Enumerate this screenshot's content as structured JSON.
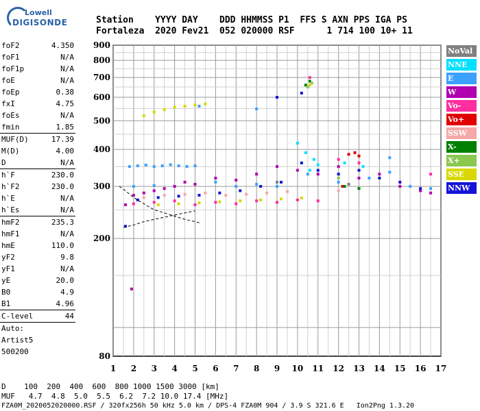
{
  "logo": {
    "brand": "Lowell",
    "product": "DIGISONDE"
  },
  "header": {
    "line1": "Station    YYYY DAY    DDD HHMMSS P1  FFS S AXN PPS IGA PS",
    "line2": "Fortaleza  2020 Fev21  052 020000 RSF      1 714 100 10+ 11"
  },
  "params": {
    "group1": [
      {
        "name": "foF2",
        "value": "4.350"
      },
      {
        "name": "foF1",
        "value": "N/A"
      },
      {
        "name": "foF1p",
        "value": "N/A"
      },
      {
        "name": "foE",
        "value": "N/A"
      },
      {
        "name": "foEp",
        "value": "0.38"
      },
      {
        "name": "fxI",
        "value": "4.75"
      },
      {
        "name": "foEs",
        "value": "N/A"
      },
      {
        "name": "fmin",
        "value": "1.85"
      }
    ],
    "group2": [
      {
        "name": "MUF(D)",
        "value": "17.39"
      },
      {
        "name": "M(D)",
        "value": "4.00"
      },
      {
        "name": "D",
        "value": "N/A"
      }
    ],
    "group3": [
      {
        "name": "h`F",
        "value": "230.0"
      },
      {
        "name": "h`F2",
        "value": "230.0"
      },
      {
        "name": "h`E",
        "value": "N/A"
      },
      {
        "name": "h`Es",
        "value": "N/A"
      }
    ],
    "group4": [
      {
        "name": "hmF2",
        "value": "235.3"
      },
      {
        "name": "hmF1",
        "value": "N/A"
      },
      {
        "name": "hmE",
        "value": "110.0"
      },
      {
        "name": "yF2",
        "value": "9.8"
      },
      {
        "name": "yF1",
        "value": "N/A"
      },
      {
        "name": "yE",
        "value": "20.0"
      },
      {
        "name": "B0",
        "value": "4.9"
      },
      {
        "name": "B1",
        "value": "4.96"
      }
    ],
    "group5": [
      {
        "name": "C-level",
        "value": "44"
      }
    ],
    "auto": [
      "Auto:",
      "Artist5",
      "500200"
    ]
  },
  "legend": [
    {
      "label": "NoVal",
      "bg": "#808080",
      "fg": "#ffffff"
    },
    {
      "label": "NNE",
      "bg": "#00e0ff",
      "fg": "#ffffff"
    },
    {
      "label": "E",
      "bg": "#3ca0ff",
      "fg": "#ffffff"
    },
    {
      "label": "W",
      "bg": "#b000b0",
      "fg": "#ffffff"
    },
    {
      "label": "Vo-",
      "bg": "#ff2e9e",
      "fg": "#ffffff"
    },
    {
      "label": "Vo+",
      "bg": "#e00000",
      "fg": "#ffffff"
    },
    {
      "label": "SSW",
      "bg": "#f4a8a8",
      "fg": "#ffffff"
    },
    {
      "label": "X-",
      "bg": "#008000",
      "fg": "#ffffff"
    },
    {
      "label": "X+",
      "bg": "#8ac850",
      "fg": "#ffffff"
    },
    {
      "label": "SSE",
      "bg": "#d8d800",
      "fg": "#ffffff"
    },
    {
      "label": "NNW",
      "bg": "#1414d8",
      "fg": "#ffffff"
    }
  ],
  "footer": {
    "line1": "D    100  200  400  600  800 1000 1500 3000 [km]",
    "line2": "MUF   4.7  4.8  5.0  5.5  6.2  7.2 10.0 17.4 [MHz]",
    "line3": "FZA0M_2020052020000.RSF / 320fx256h 50 kHz 5.0 km / DPS-4 FZA0M 904 / 3.9 S 321.6 E   Ion2Png 1.3.20"
  },
  "chart_data": {
    "type": "scatter",
    "title": "",
    "xlabel": "",
    "ylabel": "",
    "xlim": [
      1,
      17
    ],
    "ylim": [
      80,
      900
    ],
    "y_scale": "log",
    "xticks": [
      1,
      2,
      3,
      4,
      5,
      6,
      7,
      8,
      9,
      10,
      11,
      12,
      13,
      14,
      15,
      16,
      17
    ],
    "yticks": [
      80,
      200,
      300,
      400,
      500,
      600,
      700,
      800,
      900
    ],
    "grid": true,
    "legend_position": "right",
    "series": [
      {
        "name": "E",
        "color": "#3ca0ff",
        "points": [
          [
            1.8,
            350
          ],
          [
            2.2,
            352
          ],
          [
            2.6,
            354
          ],
          [
            3.0,
            350
          ],
          [
            3.4,
            352
          ],
          [
            3.8,
            355
          ],
          [
            4.2,
            352
          ],
          [
            4.6,
            350
          ],
          [
            5.0,
            352
          ],
          [
            2.0,
            300
          ],
          [
            3.0,
            302
          ],
          [
            4.0,
            300
          ],
          [
            5.0,
            305
          ],
          [
            6.0,
            310
          ],
          [
            7.0,
            300
          ],
          [
            8.0,
            305
          ],
          [
            9.0,
            300
          ],
          [
            10.5,
            330
          ],
          [
            12.0,
            310
          ],
          [
            13.5,
            320
          ],
          [
            14.5,
            335
          ],
          [
            15.5,
            300
          ],
          [
            16.5,
            295
          ],
          [
            8.0,
            548
          ],
          [
            5.2,
            560
          ],
          [
            14.5,
            375
          ]
        ]
      },
      {
        "name": "NNE",
        "color": "#00e0ff",
        "points": [
          [
            10.2,
            360
          ],
          [
            10.4,
            390
          ],
          [
            10.6,
            340
          ],
          [
            10.8,
            370
          ],
          [
            11.0,
            355
          ],
          [
            12.3,
            360
          ],
          [
            13.2,
            350
          ],
          [
            10.0,
            420
          ]
        ]
      },
      {
        "name": "W",
        "color": "#b000b0",
        "points": [
          [
            2.0,
            280
          ],
          [
            2.5,
            285
          ],
          [
            3.0,
            290
          ],
          [
            3.5,
            295
          ],
          [
            4.0,
            300
          ],
          [
            4.5,
            310
          ],
          [
            5.0,
            305
          ],
          [
            6.0,
            320
          ],
          [
            7.0,
            315
          ],
          [
            8.0,
            330
          ],
          [
            9.0,
            350
          ],
          [
            10.0,
            340
          ],
          [
            11.0,
            330
          ],
          [
            12.0,
            350
          ],
          [
            13.0,
            320
          ],
          [
            14.0,
            330
          ],
          [
            15.0,
            300
          ],
          [
            16.0,
            290
          ],
          [
            16.5,
            285
          ],
          [
            1.9,
            135
          ],
          [
            1.6,
            260
          ]
        ]
      },
      {
        "name": "Vo-",
        "color": "#ff2e9e",
        "points": [
          [
            2.0,
            262
          ],
          [
            3.0,
            265
          ],
          [
            4.0,
            268
          ],
          [
            5.0,
            260
          ],
          [
            6.0,
            265
          ],
          [
            7.0,
            262
          ],
          [
            8.0,
            268
          ],
          [
            9.0,
            265
          ],
          [
            10.0,
            270
          ],
          [
            11.0,
            268
          ],
          [
            12.0,
            370
          ],
          [
            13.0,
            360
          ],
          [
            16.5,
            330
          ],
          [
            10.6,
            700
          ]
        ]
      },
      {
        "name": "Vo+",
        "color": "#e00000",
        "points": [
          [
            12.5,
            385
          ],
          [
            12.8,
            390
          ],
          [
            13.0,
            380
          ],
          [
            12.2,
            300
          ]
        ]
      },
      {
        "name": "SSW",
        "color": "#f4a8a8",
        "points": [
          [
            2.5,
            275
          ],
          [
            3.5,
            280
          ],
          [
            4.5,
            282
          ],
          [
            5.5,
            285
          ],
          [
            6.5,
            280
          ],
          [
            7.5,
            282
          ],
          [
            8.5,
            285
          ],
          [
            9.5,
            288
          ],
          [
            12.0,
            290
          ]
        ]
      },
      {
        "name": "X-",
        "color": "#008000",
        "points": [
          [
            10.4,
            660
          ],
          [
            10.6,
            680
          ],
          [
            12.3,
            300
          ],
          [
            13.0,
            295
          ]
        ]
      },
      {
        "name": "X+",
        "color": "#8ac850",
        "points": [
          [
            10.5,
            650
          ],
          [
            10.7,
            670
          ],
          [
            12.0,
            320
          ]
        ]
      },
      {
        "name": "SSE",
        "color": "#d8d800",
        "points": [
          [
            2.5,
            520
          ],
          [
            3.0,
            535
          ],
          [
            3.5,
            545
          ],
          [
            4.0,
            555
          ],
          [
            4.5,
            560
          ],
          [
            5.0,
            565
          ],
          [
            5.5,
            570
          ],
          [
            3.2,
            260
          ],
          [
            4.2,
            262
          ],
          [
            5.2,
            264
          ],
          [
            6.2,
            266
          ],
          [
            7.2,
            268
          ],
          [
            8.2,
            270
          ],
          [
            9.2,
            272
          ],
          [
            10.2,
            274
          ],
          [
            10.6,
            660
          ]
        ]
      },
      {
        "name": "NNW",
        "color": "#1414d8",
        "points": [
          [
            2.2,
            270
          ],
          [
            3.2,
            275
          ],
          [
            4.2,
            278
          ],
          [
            5.2,
            280
          ],
          [
            6.2,
            285
          ],
          [
            7.2,
            290
          ],
          [
            8.2,
            300
          ],
          [
            9.2,
            310
          ],
          [
            10.2,
            360
          ],
          [
            11.0,
            340
          ],
          [
            12.0,
            330
          ],
          [
            13.0,
            340
          ],
          [
            14.0,
            320
          ],
          [
            15.0,
            310
          ],
          [
            16.0,
            295
          ],
          [
            9.0,
            600
          ],
          [
            10.2,
            620
          ],
          [
            1.6,
            220
          ]
        ]
      },
      {
        "name": "NoVal",
        "color": "#808080",
        "points": [
          [
            9.0,
            310
          ],
          [
            12.5,
            305
          ]
        ]
      }
    ],
    "profile_curves": [
      {
        "name": "virtual-height-trace",
        "style": "dashed",
        "points": [
          [
            1.3,
            300
          ],
          [
            1.6,
            290
          ],
          [
            2.0,
            275
          ],
          [
            2.5,
            262
          ],
          [
            3.0,
            250
          ],
          [
            3.5,
            244
          ],
          [
            4.0,
            238
          ],
          [
            4.5,
            232
          ],
          [
            5.0,
            228
          ],
          [
            5.3,
            225
          ]
        ]
      },
      {
        "name": "lower-trace",
        "style": "dashed",
        "points": [
          [
            1.5,
            218
          ],
          [
            2.0,
            222
          ],
          [
            2.5,
            228
          ],
          [
            3.0,
            232
          ],
          [
            3.5,
            236
          ],
          [
            4.0,
            240
          ],
          [
            4.5,
            244
          ],
          [
            5.0,
            248
          ]
        ]
      }
    ]
  }
}
